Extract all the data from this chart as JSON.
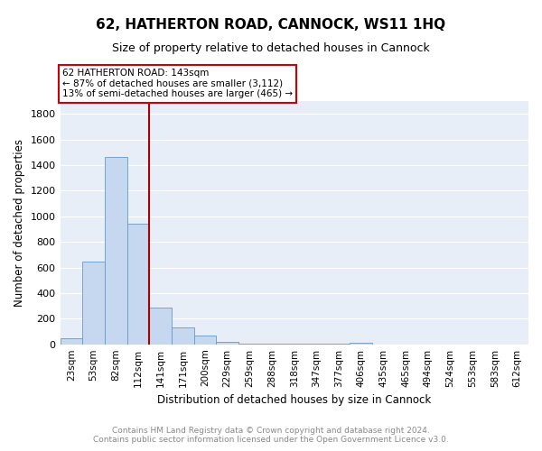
{
  "title": "62, HATHERTON ROAD, CANNOCK, WS11 1HQ",
  "subtitle": "Size of property relative to detached houses in Cannock",
  "xlabel": "Distribution of detached houses by size in Cannock",
  "ylabel": "Number of detached properties",
  "footnote": "Contains HM Land Registry data © Crown copyright and database right 2024.\nContains public sector information licensed under the Open Government Licence v3.0.",
  "bar_labels": [
    "23sqm",
    "53sqm",
    "82sqm",
    "112sqm",
    "141sqm",
    "171sqm",
    "200sqm",
    "229sqm",
    "259sqm",
    "288sqm",
    "318sqm",
    "347sqm",
    "377sqm",
    "406sqm",
    "435sqm",
    "465sqm",
    "494sqm",
    "524sqm",
    "553sqm",
    "583sqm",
    "612sqm"
  ],
  "bar_values": [
    45,
    648,
    1460,
    940,
    290,
    130,
    65,
    20,
    8,
    4,
    2,
    2,
    2,
    10,
    0,
    0,
    0,
    0,
    0,
    0,
    0
  ],
  "bar_color": "#c5d8ef",
  "bar_edgecolor": "#6899c8",
  "bg_color": "#e8eef7",
  "grid_color": "#ffffff",
  "vline_x": 4.0,
  "vline_color": "#aa0000",
  "annotation_text": "62 HATHERTON ROAD: 143sqm\n← 87% of detached houses are smaller (3,112)\n13% of semi-detached houses are larger (465) →",
  "annotation_box_color": "#cc0000",
  "ylim": [
    0,
    1900
  ],
  "yticks": [
    0,
    200,
    400,
    600,
    800,
    1000,
    1200,
    1400,
    1600,
    1800
  ],
  "title_fontsize": 11,
  "subtitle_fontsize": 9,
  "ylabel_fontsize": 8.5,
  "xlabel_fontsize": 8.5,
  "tick_fontsize": 8,
  "annotation_fontsize": 7.5,
  "footnote_fontsize": 6.5,
  "footnote_color": "#888888"
}
